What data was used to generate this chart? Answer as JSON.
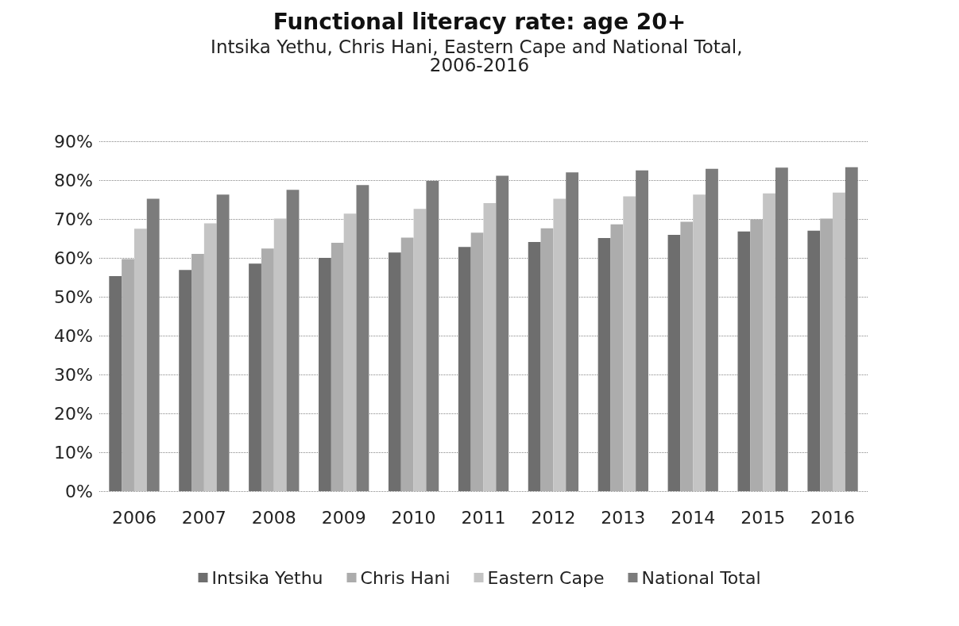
{
  "chart_data": {
    "type": "bar",
    "title": "Functional literacy rate: age 20+",
    "subtitle": "Intsika Yethu, Chris Hani, Eastern Cape and National Total, 2006-2016",
    "categories": [
      "2006",
      "2007",
      "2008",
      "2009",
      "2010",
      "2011",
      "2012",
      "2013",
      "2014",
      "2015",
      "2016"
    ],
    "series": [
      {
        "name": "Intsika Yethu",
        "color": "#6e6e6e",
        "values": [
          55.3,
          56.9,
          58.5,
          60.0,
          61.4,
          62.8,
          64.1,
          65.1,
          65.9,
          66.8,
          67.0
        ]
      },
      {
        "name": "Chris Hani",
        "color": "#acacac",
        "values": [
          59.7,
          61.0,
          62.4,
          63.9,
          65.2,
          66.5,
          67.6,
          68.6,
          69.3,
          69.9,
          70.1
        ]
      },
      {
        "name": "Eastern Cape",
        "color": "#c4c4c4",
        "values": [
          67.5,
          68.9,
          70.1,
          71.4,
          72.6,
          74.1,
          75.2,
          75.8,
          76.3,
          76.6,
          76.8
        ]
      },
      {
        "name": "National Total",
        "color": "#7c7c7c",
        "values": [
          75.2,
          76.3,
          77.5,
          78.7,
          79.8,
          81.1,
          82.0,
          82.5,
          82.9,
          83.2,
          83.3
        ]
      }
    ],
    "ylim": [
      0,
      90
    ],
    "yticks": [
      {
        "value": 0,
        "label": "0%"
      },
      {
        "value": 10,
        "label": "10%"
      },
      {
        "value": 20,
        "label": "20%"
      },
      {
        "value": 30,
        "label": "30%"
      },
      {
        "value": 40,
        "label": "40%"
      },
      {
        "value": 50,
        "label": "50%"
      },
      {
        "value": 60,
        "label": "60%"
      },
      {
        "value": 70,
        "label": "70%"
      },
      {
        "value": 80,
        "label": "80%"
      },
      {
        "value": 90,
        "label": "90%"
      }
    ],
    "grid": "y",
    "legend": "bottom"
  }
}
